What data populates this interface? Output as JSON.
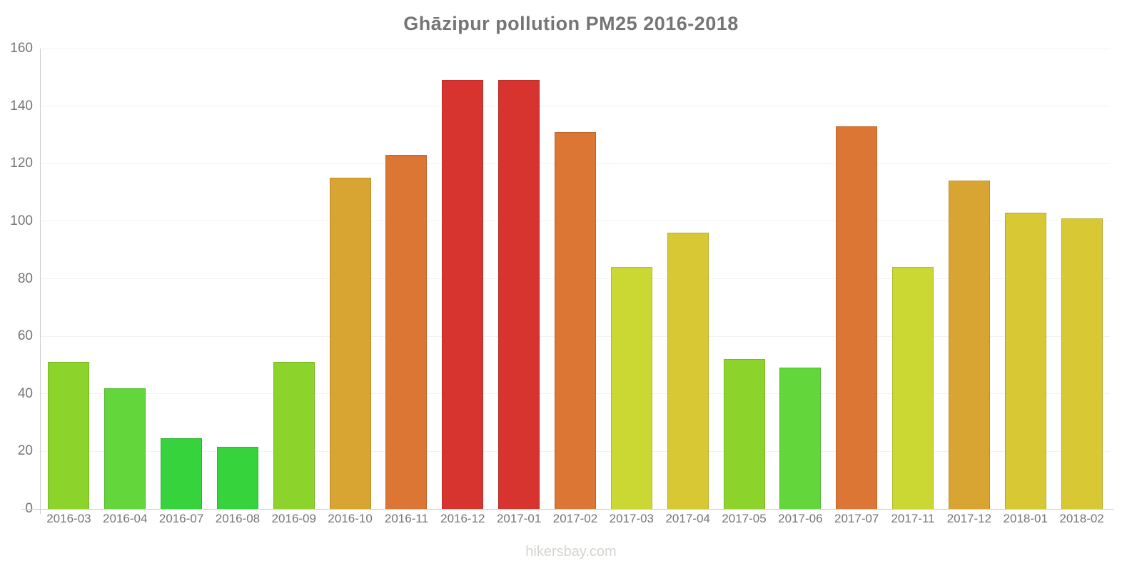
{
  "title": "Ghāzipur pollution PM25 2016-2018",
  "watermark": "hikersbay.com",
  "colors": {
    "title_text": "#757575",
    "tick_text": "#757575",
    "axis_line": "#cccccc",
    "gridline": "#f2f2f2",
    "watermark_text": "#d4d4cf",
    "background": "#ffffff"
  },
  "chart_data": {
    "type": "bar",
    "title": "Ghāzipur pollution PM25 2016-2018",
    "xlabel": "",
    "ylabel": "",
    "ylim": [
      0,
      160
    ],
    "yticks": [
      0,
      20,
      40,
      60,
      80,
      100,
      120,
      140,
      160
    ],
    "grid": "horizontal, faint",
    "legend": "none",
    "categories": [
      "2016-03",
      "2016-04",
      "2016-07",
      "2016-08",
      "2016-09",
      "2016-10",
      "2016-11",
      "2016-12",
      "2017-01",
      "2017-02",
      "2017-03",
      "2017-04",
      "2017-05",
      "2017-06",
      "2017-07",
      "2017-11",
      "2017-12",
      "2018-01",
      "2018-02"
    ],
    "values": [
      51,
      42,
      24.5,
      21.5,
      51,
      115,
      123,
      149,
      149,
      131,
      84,
      96,
      52,
      49,
      133,
      84,
      114,
      103,
      101
    ],
    "bar_colors": [
      "#8cd42b",
      "#62d63a",
      "#36d33c",
      "#36d33c",
      "#8cd42b",
      "#d8a533",
      "#db7634",
      "#d8342f",
      "#d8342f",
      "#db7634",
      "#cbd834",
      "#d8c833",
      "#8cd42b",
      "#62d63a",
      "#db7634",
      "#cbd834",
      "#d8a533",
      "#d8c833",
      "#d8c833"
    ]
  }
}
